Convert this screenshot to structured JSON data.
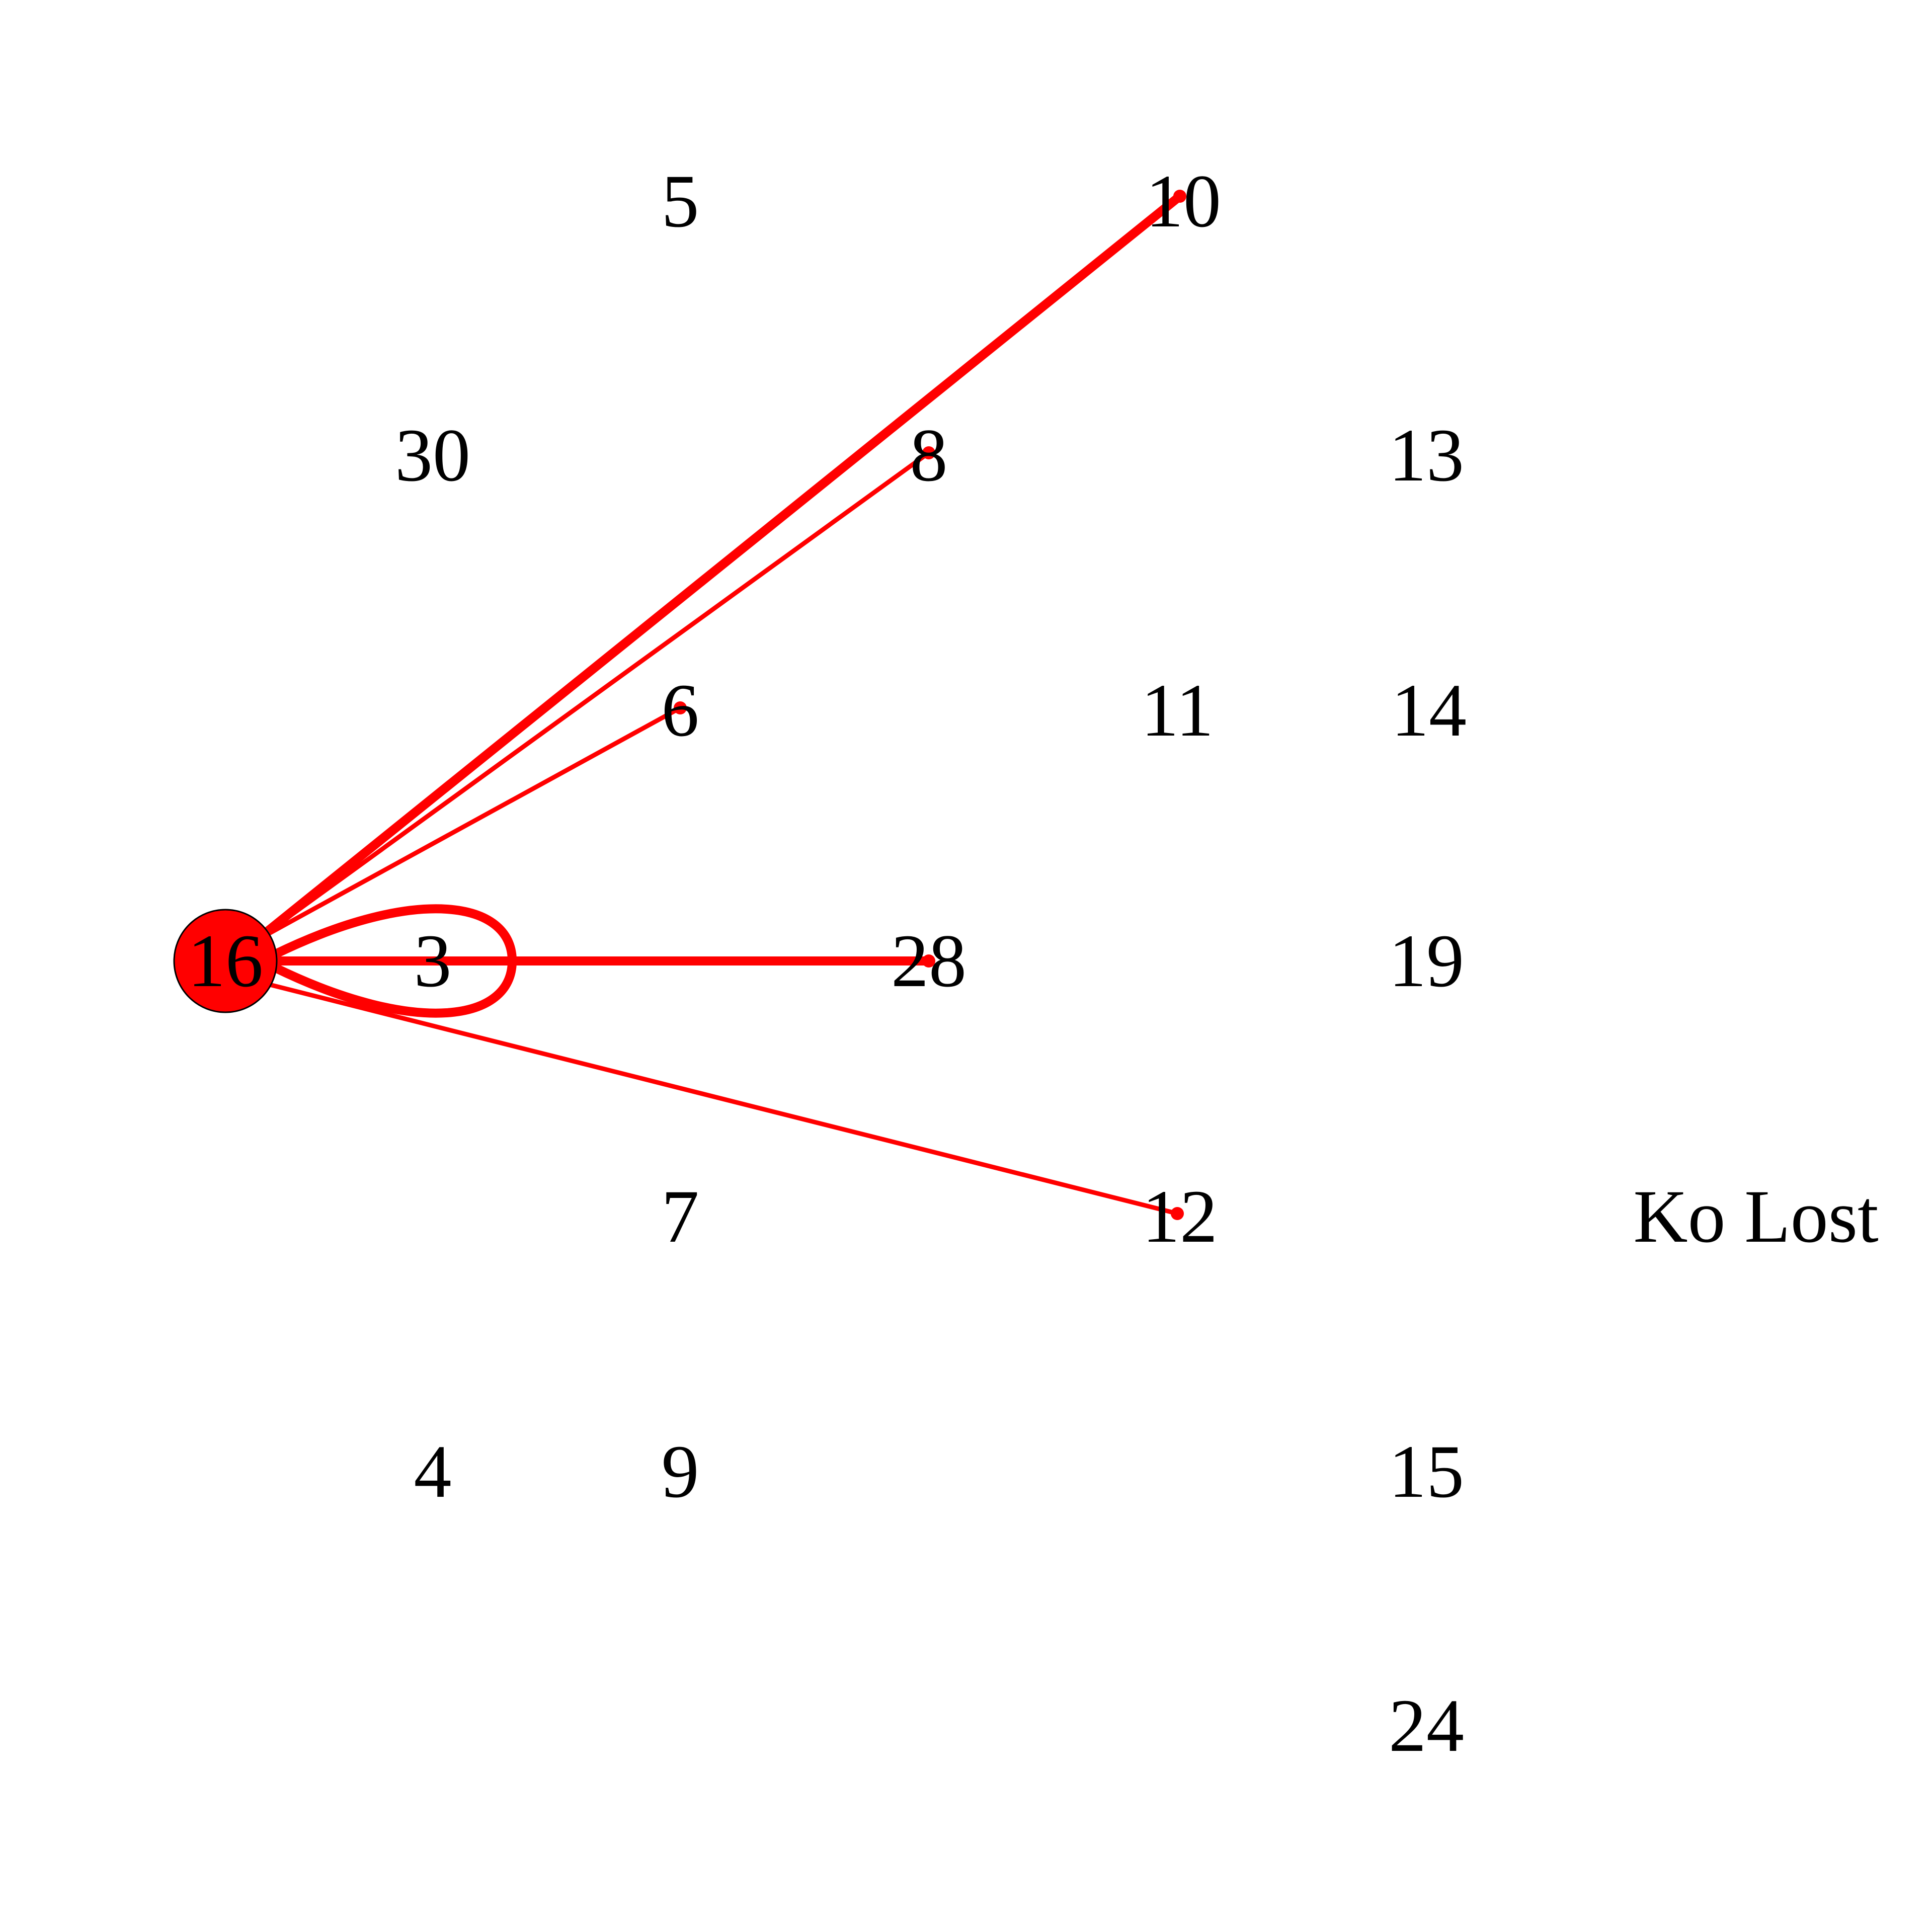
{
  "colors": {
    "edge": "#ff0000",
    "hub_node": "#ff0000",
    "label": "#000000",
    "background": "#ffffff"
  },
  "nodes": [
    {
      "id": "5",
      "label": "5"
    },
    {
      "id": "10",
      "label": "10"
    },
    {
      "id": "30",
      "label": "30"
    },
    {
      "id": "8",
      "label": "8"
    },
    {
      "id": "13",
      "label": "13"
    },
    {
      "id": "6",
      "label": "6"
    },
    {
      "id": "11",
      "label": "11"
    },
    {
      "id": "14",
      "label": "14"
    },
    {
      "id": "16",
      "label": "16"
    },
    {
      "id": "3",
      "label": "3"
    },
    {
      "id": "28",
      "label": "28"
    },
    {
      "id": "19",
      "label": "19"
    },
    {
      "id": "7",
      "label": "7"
    },
    {
      "id": "12",
      "label": "12"
    },
    {
      "id": "ko-lost",
      "label": "Ko Lost"
    },
    {
      "id": "4",
      "label": "4"
    },
    {
      "id": "9",
      "label": "9"
    },
    {
      "id": "15",
      "label": "15"
    },
    {
      "id": "24",
      "label": "24"
    }
  ],
  "hub_node": "16",
  "edges": [
    {
      "from": "16",
      "to": "10",
      "weight": 3
    },
    {
      "from": "16",
      "to": "8",
      "weight": 1
    },
    {
      "from": "16",
      "to": "6",
      "weight": 1
    },
    {
      "from": "16",
      "to": "28",
      "weight": 3
    },
    {
      "from": "16",
      "to": "12",
      "weight": 1
    },
    {
      "from": "16",
      "to": "16",
      "weight": 3,
      "self_loop": true
    }
  ]
}
